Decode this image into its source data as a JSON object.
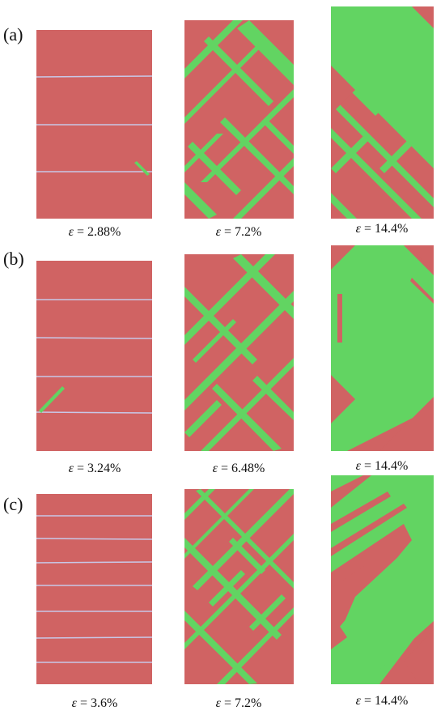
{
  "figure": {
    "rows": [
      {
        "label": "(a)",
        "panels": [
          {
            "strain_text": "= 2.88%",
            "symbol": "ε",
            "twin_fraction_level": "low"
          },
          {
            "strain_text": "= 7.2%",
            "symbol": "ε",
            "twin_fraction_level": "medium"
          },
          {
            "strain_text": "= 14.4%",
            "symbol": "ε",
            "twin_fraction_level": "high"
          }
        ]
      },
      {
        "label": "(b)",
        "panels": [
          {
            "strain_text": "= 3.24%",
            "symbol": "ε",
            "twin_fraction_level": "low"
          },
          {
            "strain_text": "= 6.48%",
            "symbol": "ε",
            "twin_fraction_level": "medium"
          },
          {
            "strain_text": "= 14.4%",
            "symbol": "ε",
            "twin_fraction_level": "high"
          }
        ]
      },
      {
        "label": "(c)",
        "panels": [
          {
            "strain_text": "= 3.6%",
            "symbol": "ε",
            "twin_fraction_level": "low"
          },
          {
            "strain_text": "= 7.2%",
            "symbol": "ε",
            "twin_fraction_level": "medium"
          },
          {
            "strain_text": "= 14.4%",
            "symbol": "ε",
            "twin_fraction_level": "high"
          }
        ]
      }
    ],
    "colors": {
      "matrix": "#d06363",
      "twin": "#62d462",
      "boundary": "#c8c8e8"
    }
  }
}
